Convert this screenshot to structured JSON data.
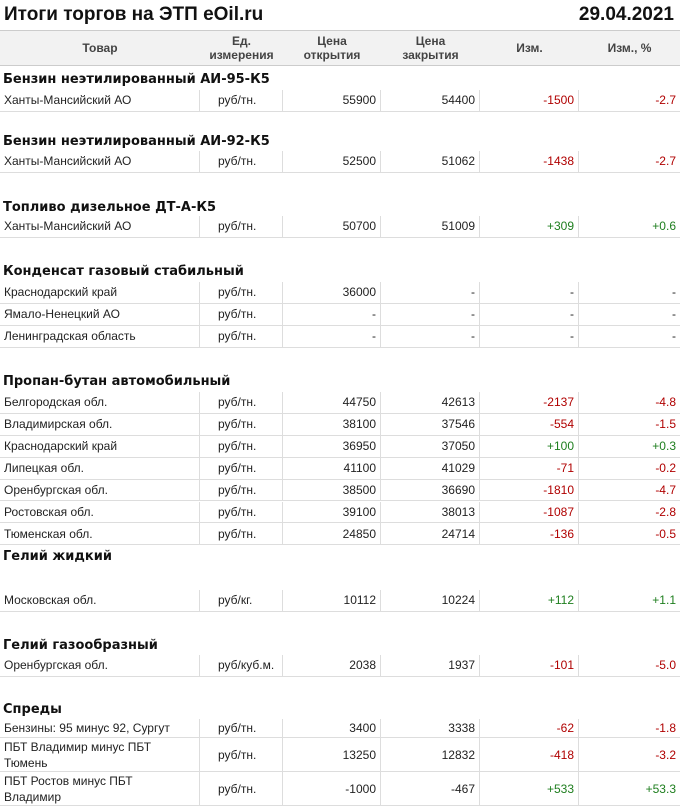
{
  "header": {
    "title": "Итоги торгов на ЭТП eOil.ru",
    "date": "29.04.2021"
  },
  "columns": [
    "Товар",
    "Ед. измерения",
    "Цена открытия",
    "Цена закрытия",
    "Изм.",
    "Изм., %"
  ],
  "sections": [
    {
      "title": "Бензин неэтилированный АИ-95-К5",
      "rows": [
        [
          "Ханты-Мансийский АО",
          "руб/тн.",
          "55900",
          "54400",
          "-1500",
          "-2.7"
        ]
      ]
    },
    {
      "title": "Бензин неэтилированный АИ-92-К5",
      "rows": [
        [
          "Ханты-Мансийский АО",
          "руб/тн.",
          "52500",
          "51062",
          "-1438",
          "-2.7"
        ]
      ]
    },
    {
      "title": "Топливо дизельное ДТ-А-К5",
      "rows": [
        [
          "Ханты-Мансийский АО",
          "руб/тн.",
          "50700",
          "51009",
          "+309",
          "+0.6"
        ]
      ]
    },
    {
      "title": "Конденсат газовый стабильный",
      "rows": [
        [
          "Краснодарский край",
          "руб/тн.",
          "36000",
          "-",
          "-",
          "-"
        ],
        [
          "Ямало-Ненецкий АО",
          "руб/тн.",
          "-",
          "-",
          "-",
          "-"
        ],
        [
          "Ленинградская область",
          "руб/тн.",
          "-",
          "-",
          "-",
          "-"
        ]
      ]
    },
    {
      "title": "Пропан-бутан автомобильный",
      "rows": [
        [
          "Белгородская обл.",
          "руб/тн.",
          "44750",
          "42613",
          "-2137",
          "-4.8"
        ],
        [
          "Владимирская обл.",
          "руб/тн.",
          "38100",
          "37546",
          "-554",
          "-1.5"
        ],
        [
          "Краснодарский край",
          "руб/тн.",
          "36950",
          "37050",
          "+100",
          "+0.3"
        ],
        [
          "Липецкая обл.",
          "руб/тн.",
          "41100",
          "41029",
          "-71",
          "-0.2"
        ],
        [
          "Оренбургская обл.",
          "руб/тн.",
          "38500",
          "36690",
          "-1810",
          "-4.7"
        ],
        [
          "Ростовская обл.",
          "руб/тн.",
          "39100",
          "38013",
          "-1087",
          "-2.8"
        ],
        [
          "Тюменская обл.",
          "руб/тн.",
          "24850",
          "24714",
          "-136",
          "-0.5"
        ]
      ]
    },
    {
      "title": "Гелий жидкий",
      "rows": [
        [
          "Московская обл.",
          "руб/кг.",
          "10112",
          "10224",
          "+112",
          "+1.1"
        ]
      ]
    },
    {
      "title": "Гелий газообразный",
      "rows": [
        [
          "Оренбургская обл.",
          "руб/куб.м.",
          "2038",
          "1937",
          "-101",
          "-5.0"
        ]
      ]
    },
    {
      "title": "Спреды",
      "rows": [
        [
          "Бензины: 95 минус 92, Сургут",
          "руб/тн.",
          "3400",
          "3338",
          "-62",
          "-1.8"
        ],
        [
          "ПБТ Владимир минус ПБТ Тюмень",
          "руб/тн.",
          "13250",
          "12832",
          "-418",
          "-3.2"
        ],
        [
          "ПБТ Ростов минус ПБТ Владимир",
          "руб/тн.",
          "-1000",
          "-467",
          "+533",
          "+53.3"
        ]
      ]
    }
  ]
}
